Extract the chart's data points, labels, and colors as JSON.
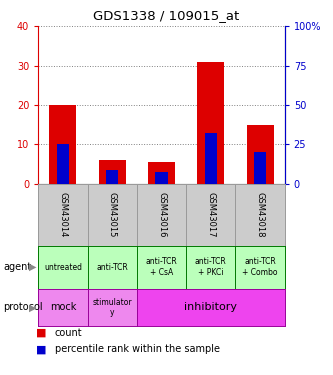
{
  "title": "GDS1338 / 109015_at",
  "samples": [
    "GSM43014",
    "GSM43015",
    "GSM43016",
    "GSM43017",
    "GSM43018"
  ],
  "count_values": [
    20,
    6,
    5.5,
    31,
    15
  ],
  "percentile_values": [
    25,
    8.75,
    7.5,
    32.5,
    20
  ],
  "left_ylim": [
    0,
    40
  ],
  "right_ylim": [
    0,
    100
  ],
  "left_yticks": [
    0,
    10,
    20,
    30,
    40
  ],
  "right_yticks": [
    0,
    25,
    50,
    75,
    100
  ],
  "left_ytick_labels": [
    "0",
    "10",
    "20",
    "30",
    "40"
  ],
  "right_ytick_labels": [
    "0",
    "25",
    "50",
    "75",
    "100%"
  ],
  "bar_color_count": "#dd0000",
  "bar_color_pct": "#0000cc",
  "agent_labels": [
    "untreated",
    "anti-TCR",
    "anti-TCR\n+ CsA",
    "anti-TCR\n+ PKCi",
    "anti-TCR\n+ Combo"
  ],
  "agent_bg": "#bbffbb",
  "agent_border": "#007700",
  "protocol_bg_mock": "#ee88ee",
  "protocol_bg_stim": "#ee88ee",
  "protocol_bg_inhib": "#ee44ee",
  "protocol_border": "#990099",
  "sample_label_bg": "#cccccc",
  "sample_label_border": "#999999",
  "grid_color": "#000000",
  "grid_alpha": 0.4,
  "left_axis_color": "#dd0000",
  "right_axis_color": "#0000cc",
  "bar_width": 0.55
}
